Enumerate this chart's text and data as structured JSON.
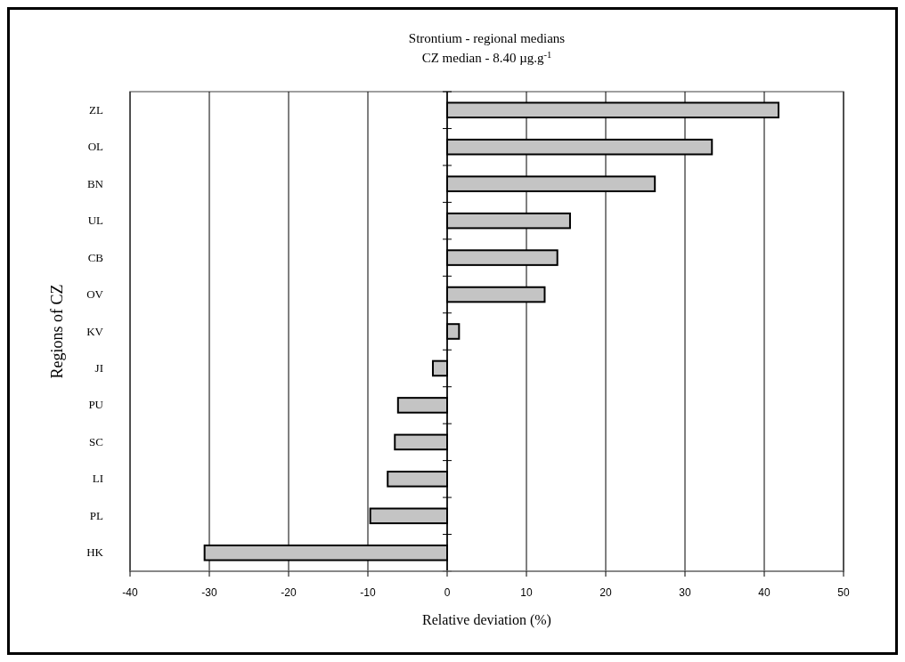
{
  "chart_data": {
    "type": "bar",
    "orientation": "horizontal",
    "title": "Strontium - regional medians",
    "subtitle": "CZ median - 8.40 µg.g$^{-1}$",
    "xlabel": "Relative deviation (%)",
    "ylabel": "Regions of CZ",
    "categories": [
      "ZL",
      "OL",
      "BN",
      "UL",
      "CB",
      "OV",
      "KV",
      "JI",
      "PU",
      "SC",
      "LI",
      "PL",
      "HK"
    ],
    "values": [
      41.8,
      33.4,
      26.2,
      15.5,
      13.9,
      12.3,
      1.5,
      -1.8,
      -6.2,
      -6.6,
      -7.5,
      -9.7,
      -30.6
    ],
    "color": "#c4c4c4",
    "xlim": [
      -40,
      50
    ],
    "xticks": [
      -40,
      -30,
      -20,
      -10,
      0,
      10,
      20,
      30,
      40,
      50
    ],
    "grid": "x"
  }
}
